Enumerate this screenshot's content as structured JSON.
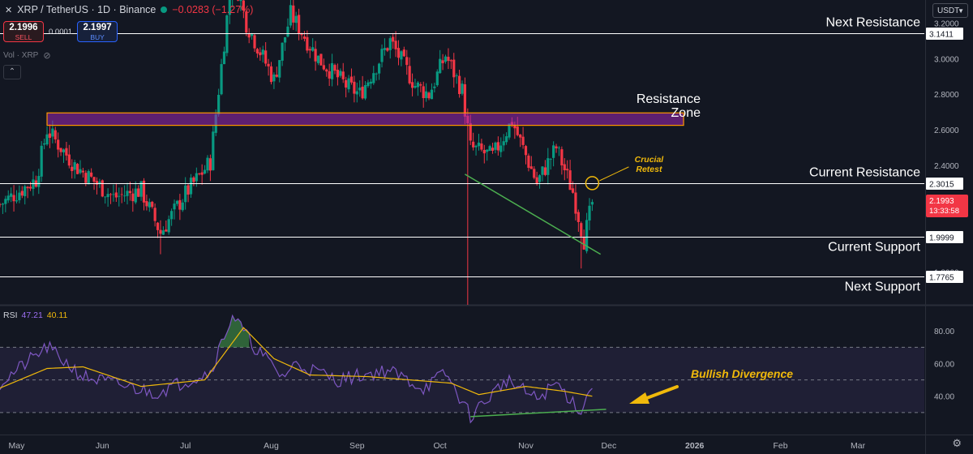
{
  "header": {
    "symbol": "XRP / TetherUS · 1D · Binance",
    "change": "−0.0283 (−1.27%)",
    "sell_price": "2.1996",
    "sell_label": "SELL",
    "spread": "0.0001",
    "buy_price": "2.1997",
    "buy_label": "BUY",
    "vol_label": "Vol · XRP",
    "currency": "USDT"
  },
  "colors": {
    "up": "#089981",
    "down": "#f23645",
    "rsi": "#7e57c2",
    "rsi_ma": "#f0b90b",
    "accent": "#f0b90b",
    "trendline": "#4caf50",
    "zone": "#ff9800"
  },
  "chart_data": [
    {
      "type": "candlestick",
      "title": "XRP / TetherUS · 1D · Binance",
      "y_ticks": [
        3.2,
        3.0,
        2.8,
        2.6,
        2.4,
        2.2,
        2.0,
        1.8
      ],
      "y_tick_labels": [
        "3.2000",
        "3.0000",
        "2.8000",
        "2.6000",
        "2.4000",
        "2.2000",
        "2.0000",
        "1.8000"
      ],
      "ylim": [
        1.62,
        3.33
      ],
      "x_ticks": [
        "May",
        "Jun",
        "Jul",
        "Aug",
        "Sep",
        "Oct",
        "Nov",
        "Dec",
        "2026",
        "Feb",
        "Mar"
      ],
      "x_tick_dates": [
        "2025-05-01",
        "2025-06-01",
        "2025-07-01",
        "2025-08-01",
        "2025-09-01",
        "2025-10-01",
        "2025-11-01",
        "2025-12-01",
        "2026-01-01",
        "2026-02-01",
        "2026-03-01"
      ],
      "x_range": [
        "2025-04-25",
        "2026-03-25"
      ],
      "anchors": [
        [
          "2025-04-25",
          2.18
        ],
        [
          "2025-05-08",
          2.32
        ],
        [
          "2025-05-12",
          2.6
        ],
        [
          "2025-05-22",
          2.4
        ],
        [
          "2025-06-05",
          2.22
        ],
        [
          "2025-06-15",
          2.26
        ],
        [
          "2025-06-22",
          2.02
        ],
        [
          "2025-07-01",
          2.24
        ],
        [
          "2025-07-10",
          2.42
        ],
        [
          "2025-07-18",
          3.5
        ],
        [
          "2025-07-23",
          3.2
        ],
        [
          "2025-08-02",
          2.88
        ],
        [
          "2025-08-08",
          3.25
        ],
        [
          "2025-08-18",
          3.0
        ],
        [
          "2025-08-28",
          2.85
        ],
        [
          "2025-09-02",
          2.8
        ],
        [
          "2025-09-13",
          3.1
        ],
        [
          "2025-09-22",
          2.85
        ],
        [
          "2025-09-27",
          2.8
        ],
        [
          "2025-10-03",
          3.02
        ],
        [
          "2025-10-09",
          2.82
        ],
        [
          "2025-10-12",
          2.5
        ],
        [
          "2025-10-20",
          2.45
        ],
        [
          "2025-10-27",
          2.65
        ],
        [
          "2025-11-05",
          2.3
        ],
        [
          "2025-11-12",
          2.5
        ],
        [
          "2025-11-18",
          2.25
        ],
        [
          "2025-11-22",
          1.98
        ],
        [
          "2025-11-25",
          2.19
        ]
      ],
      "wicks": [
        {
          "date": "2025-10-11",
          "low": 1.25
        },
        {
          "date": "2025-07-18",
          "high": 3.65
        },
        {
          "date": "2025-06-22",
          "low": 1.9
        },
        {
          "date": "2025-11-21",
          "low": 1.82
        }
      ],
      "levels": [
        {
          "label": "Next Resistance",
          "value": "3.1411"
        },
        {
          "label": "Current Resistance",
          "value": "2.3015"
        },
        {
          "label": "Current Support",
          "value": "1.9999"
        },
        {
          "label": "Next Support",
          "value": "1.7765"
        }
      ],
      "resistance_zone": {
        "label_line1": "Resistance",
        "label_line2": "Zone",
        "from": 2.625,
        "to": 2.695,
        "start": "2025-05-12",
        "end": "2025-12-28"
      },
      "trendline": {
        "start": [
          "2025-10-10",
          2.35
        ],
        "end": [
          "2025-11-28",
          1.9
        ]
      },
      "annotation": {
        "line1": "Crucial",
        "line2": "Retest",
        "date": "2025-11-25",
        "price": 2.3
      },
      "last_price": {
        "value": "2.1993",
        "countdown": "13:33:58"
      }
    },
    {
      "type": "line",
      "title": "RSI",
      "rsi_value": "47.21",
      "rsi_ma_value": "40.11",
      "series": [
        {
          "name": "RSI",
          "anchors": [
            [
              "2025-04-25",
              48
            ],
            [
              "2025-05-12",
              70
            ],
            [
              "2025-05-25",
              52
            ],
            [
              "2025-06-20",
              42
            ],
            [
              "2025-07-10",
              55
            ],
            [
              "2025-07-18",
              90
            ],
            [
              "2025-07-25",
              72
            ],
            [
              "2025-08-05",
              52
            ],
            [
              "2025-08-10",
              60
            ],
            [
              "2025-08-25",
              50
            ],
            [
              "2025-09-12",
              56
            ],
            [
              "2025-09-25",
              45
            ],
            [
              "2025-10-03",
              54
            ],
            [
              "2025-10-12",
              28
            ],
            [
              "2025-10-25",
              50
            ],
            [
              "2025-11-05",
              38
            ],
            [
              "2025-11-12",
              48
            ],
            [
              "2025-11-21",
              31
            ],
            [
              "2025-11-25",
              47
            ]
          ]
        },
        {
          "name": "RSI MA",
          "anchors": [
            [
              "2025-04-25",
              45
            ],
            [
              "2025-05-12",
              57
            ],
            [
              "2025-05-25",
              58
            ],
            [
              "2025-06-15",
              46
            ],
            [
              "2025-07-08",
              50
            ],
            [
              "2025-07-22",
              82
            ],
            [
              "2025-08-02",
              63
            ],
            [
              "2025-08-15",
              53
            ],
            [
              "2025-09-05",
              52
            ],
            [
              "2025-09-20",
              50
            ],
            [
              "2025-10-05",
              48
            ],
            [
              "2025-10-15",
              41
            ],
            [
              "2025-11-01",
              46
            ],
            [
              "2025-11-15",
              43
            ],
            [
              "2025-11-25",
              40
            ]
          ]
        }
      ],
      "y_ticks": [
        80,
        60,
        40
      ],
      "y_tick_labels": [
        "80.00",
        "60.00",
        "40.00"
      ],
      "ylim": [
        18,
        95
      ],
      "bands": [
        70,
        50,
        30
      ],
      "divergence_label": "Bullish Divergence",
      "divergence_line": {
        "start": [
          "2025-10-12",
          27.5
        ],
        "end": [
          "2025-11-30",
          32
        ]
      }
    }
  ]
}
